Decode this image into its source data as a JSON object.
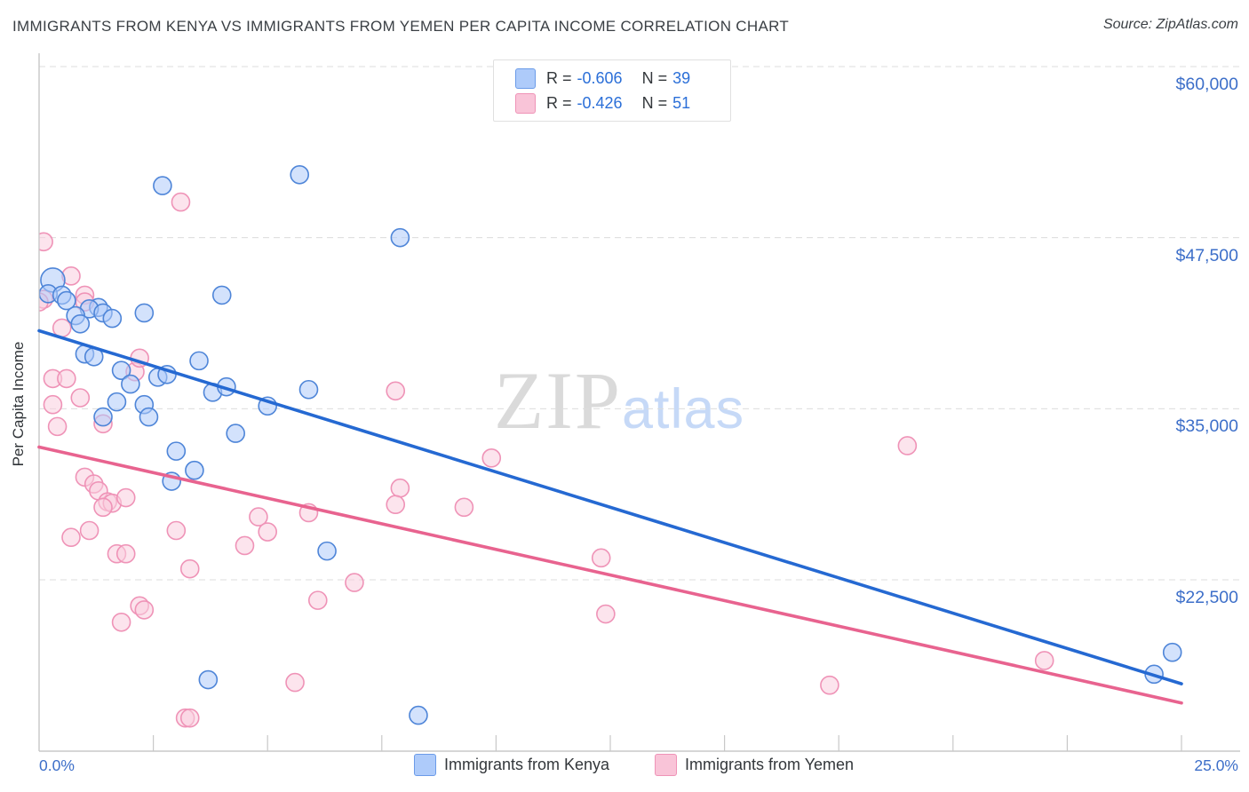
{
  "header": {
    "title": "IMMIGRANTS FROM KENYA VS IMMIGRANTS FROM YEMEN PER CAPITA INCOME CORRELATION CHART",
    "source": "Source: ZipAtlas.com"
  },
  "watermark": {
    "zip": "ZIP",
    "atlas": "atlas"
  },
  "legend": {
    "rows": [
      {
        "series": "kenya",
        "r_label": "R =",
        "r": "-0.606",
        "n_label": "N =",
        "n": "39"
      },
      {
        "series": "yemen",
        "r_label": "R =",
        "r": "-0.426",
        "n_label": "N =",
        "n": "51"
      }
    ]
  },
  "bottom_legend": {
    "kenya": "Immigrants from Kenya",
    "yemen": "Immigrants from Yemen"
  },
  "colors": {
    "kenya_fill": "rgba(174,203,250,0.55)",
    "kenya_stroke": "#4e85d8",
    "yemen_fill": "rgba(249,205,222,0.55)",
    "yemen_stroke": "#ef93b7",
    "kenya_trend": "#2569d2",
    "yemen_trend": "#e8638f",
    "grid": "#dcdcdc",
    "axis": "#c8c8c8",
    "tick_label": "#3d6fc9"
  },
  "chart_data": {
    "type": "scatter",
    "title": "IMMIGRANTS FROM KENYA VS IMMIGRANTS FROM YEMEN PER CAPITA INCOME CORRELATION CHART",
    "xlabel": "",
    "ylabel": "Per Capita Income",
    "xlim": [
      0,
      25
    ],
    "ylim": [
      10000,
      61000
    ],
    "x_units": "percent",
    "y_units": "USD",
    "xaxis": {
      "min_label": "0.0%",
      "max_label": "25.0%",
      "tick_step_pct": 2.5
    },
    "yticks": [
      {
        "value": 60000,
        "label": "$60,000"
      },
      {
        "value": 47500,
        "label": "$47,500"
      },
      {
        "value": 35000,
        "label": "$35,000"
      },
      {
        "value": 22500,
        "label": "$22,500"
      }
    ],
    "grid": "dashed-horizontal",
    "legend_position": "top-center and bottom",
    "series": [
      {
        "name": "Immigrants from Kenya",
        "key": "kenya",
        "R": -0.606,
        "N": 39,
        "points": [
          {
            "x": 2.7,
            "y": 51300
          },
          {
            "x": 5.7,
            "y": 52100
          },
          {
            "x": 7.9,
            "y": 47500
          },
          {
            "x": 0.3,
            "y": 44400,
            "r": 13.5
          },
          {
            "x": 0.2,
            "y": 43400
          },
          {
            "x": 0.5,
            "y": 43300
          },
          {
            "x": 0.6,
            "y": 42900
          },
          {
            "x": 1.3,
            "y": 42400
          },
          {
            "x": 1.1,
            "y": 42300
          },
          {
            "x": 1.4,
            "y": 42000
          },
          {
            "x": 0.8,
            "y": 41800
          },
          {
            "x": 1.6,
            "y": 41600
          },
          {
            "x": 2.3,
            "y": 42000
          },
          {
            "x": 0.9,
            "y": 41200
          },
          {
            "x": 4.0,
            "y": 43300
          },
          {
            "x": 1.0,
            "y": 39000
          },
          {
            "x": 1.2,
            "y": 38800
          },
          {
            "x": 1.8,
            "y": 37800
          },
          {
            "x": 2.0,
            "y": 36800
          },
          {
            "x": 3.5,
            "y": 38500
          },
          {
            "x": 2.6,
            "y": 37300
          },
          {
            "x": 2.8,
            "y": 37500
          },
          {
            "x": 3.8,
            "y": 36200
          },
          {
            "x": 4.1,
            "y": 36600
          },
          {
            "x": 5.0,
            "y": 35200
          },
          {
            "x": 5.9,
            "y": 36400
          },
          {
            "x": 2.3,
            "y": 35300
          },
          {
            "x": 2.4,
            "y": 34400
          },
          {
            "x": 1.4,
            "y": 34400
          },
          {
            "x": 1.7,
            "y": 35500
          },
          {
            "x": 4.3,
            "y": 33200
          },
          {
            "x": 3.0,
            "y": 31900
          },
          {
            "x": 3.4,
            "y": 30500
          },
          {
            "x": 2.9,
            "y": 29700
          },
          {
            "x": 6.3,
            "y": 24600
          },
          {
            "x": 3.7,
            "y": 15200
          },
          {
            "x": 8.3,
            "y": 12600
          },
          {
            "x": 24.4,
            "y": 15600
          },
          {
            "x": 24.8,
            "y": 17200
          }
        ]
      },
      {
        "name": "Immigrants from Yemen",
        "key": "yemen",
        "R": -0.426,
        "N": 51,
        "points": [
          {
            "x": 0.1,
            "y": 47200
          },
          {
            "x": 3.1,
            "y": 50100
          },
          {
            "x": 0.7,
            "y": 44700
          },
          {
            "x": 0.1,
            "y": 43000
          },
          {
            "x": 0.0,
            "y": 42800
          },
          {
            "x": 1.0,
            "y": 43300
          },
          {
            "x": 1.0,
            "y": 42800
          },
          {
            "x": 0.5,
            "y": 40900
          },
          {
            "x": 0.3,
            "y": 37200
          },
          {
            "x": 0.6,
            "y": 37200
          },
          {
            "x": 0.3,
            "y": 35300
          },
          {
            "x": 0.9,
            "y": 35800
          },
          {
            "x": 2.1,
            "y": 37700
          },
          {
            "x": 2.2,
            "y": 38700
          },
          {
            "x": 0.4,
            "y": 33700
          },
          {
            "x": 1.4,
            "y": 33900
          },
          {
            "x": 1.0,
            "y": 30000
          },
          {
            "x": 1.2,
            "y": 29500
          },
          {
            "x": 1.3,
            "y": 29000
          },
          {
            "x": 1.5,
            "y": 28200
          },
          {
            "x": 1.6,
            "y": 28100
          },
          {
            "x": 1.4,
            "y": 27800
          },
          {
            "x": 1.9,
            "y": 28500
          },
          {
            "x": 1.1,
            "y": 26100
          },
          {
            "x": 0.7,
            "y": 25600
          },
          {
            "x": 3.0,
            "y": 26100
          },
          {
            "x": 1.7,
            "y": 24400
          },
          {
            "x": 1.9,
            "y": 24400
          },
          {
            "x": 3.3,
            "y": 23300
          },
          {
            "x": 2.2,
            "y": 20600
          },
          {
            "x": 2.3,
            "y": 20300
          },
          {
            "x": 1.8,
            "y": 19400
          },
          {
            "x": 3.2,
            "y": 12400
          },
          {
            "x": 3.3,
            "y": 12400
          },
          {
            "x": 5.6,
            "y": 15000
          },
          {
            "x": 4.8,
            "y": 27100
          },
          {
            "x": 5.0,
            "y": 26000
          },
          {
            "x": 4.5,
            "y": 25000
          },
          {
            "x": 5.9,
            "y": 27400
          },
          {
            "x": 6.9,
            "y": 22300
          },
          {
            "x": 6.1,
            "y": 21000
          },
          {
            "x": 7.8,
            "y": 36300
          },
          {
            "x": 7.9,
            "y": 29200
          },
          {
            "x": 7.8,
            "y": 28000
          },
          {
            "x": 9.3,
            "y": 27800
          },
          {
            "x": 9.9,
            "y": 31400
          },
          {
            "x": 12.3,
            "y": 24100
          },
          {
            "x": 12.4,
            "y": 20000
          },
          {
            "x": 19.0,
            "y": 32300
          },
          {
            "x": 17.3,
            "y": 14800
          },
          {
            "x": 22.0,
            "y": 16600
          }
        ]
      }
    ],
    "trendlines": [
      {
        "series": "kenya",
        "x1": 0,
        "y1": 40700,
        "x2": 25,
        "y2": 14900
      },
      {
        "series": "yemen",
        "x1": 0,
        "y1": 32200,
        "x2": 25,
        "y2": 13500
      }
    ]
  }
}
